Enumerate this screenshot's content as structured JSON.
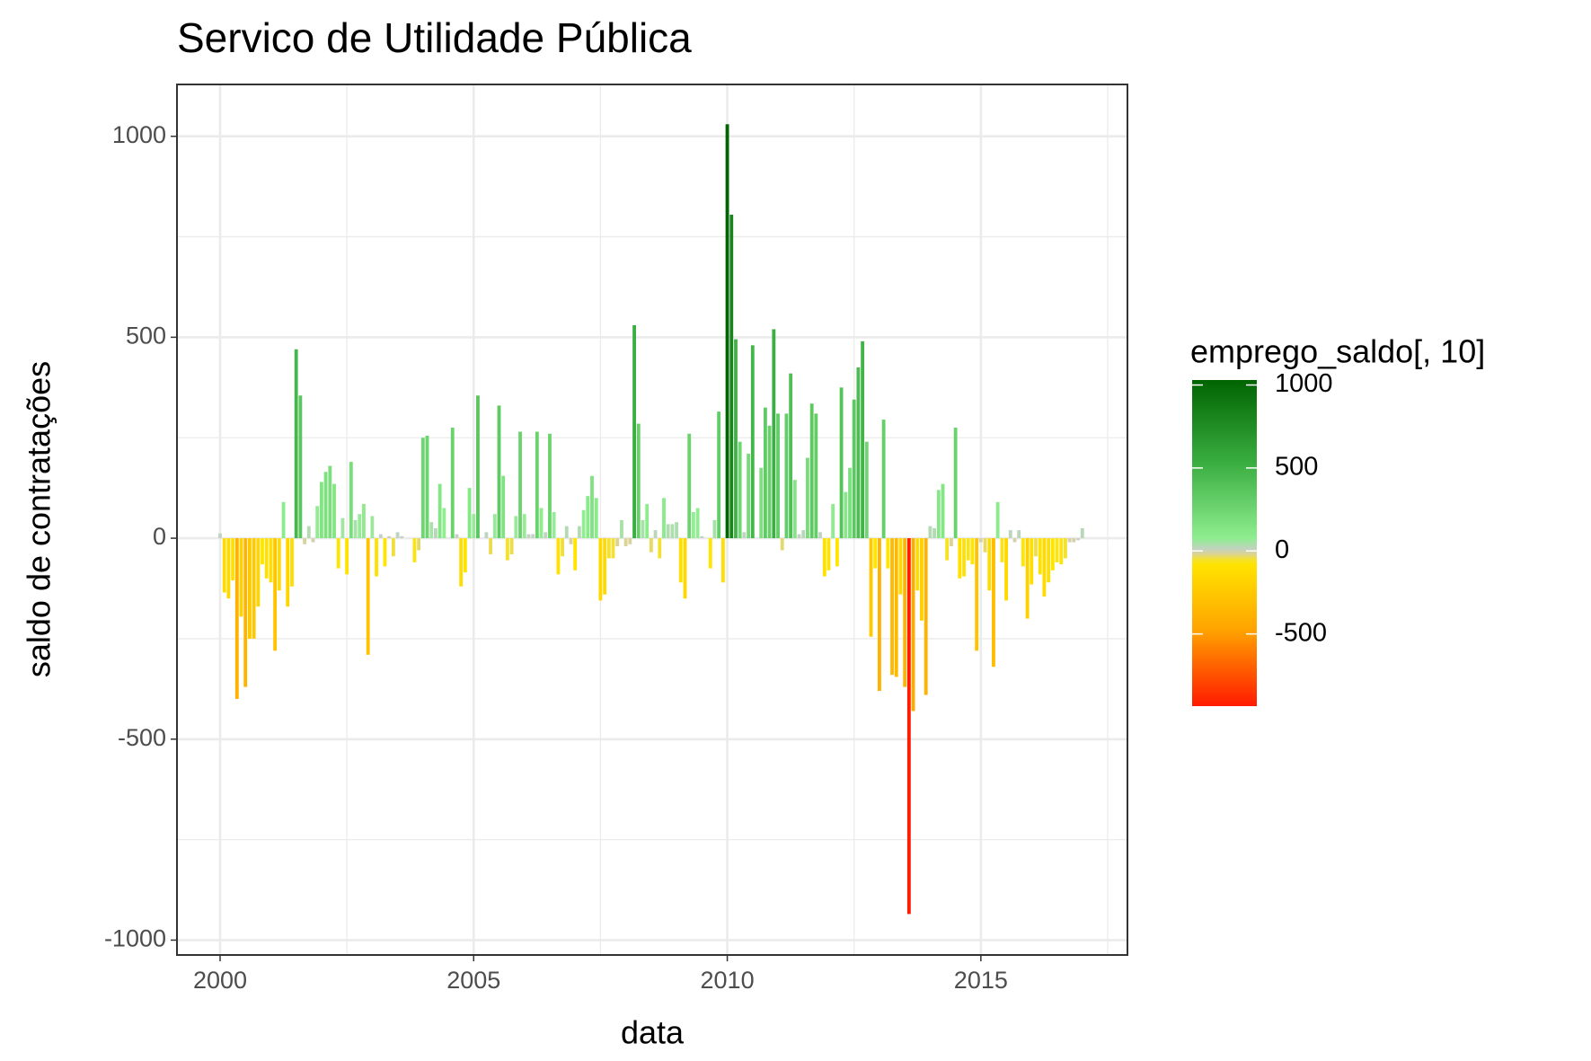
{
  "chart_data": {
    "type": "bar",
    "title": "Servico de Utilidade Pública",
    "x_label": "data",
    "y_label": "saldo de contratações",
    "x": [
      2000,
      2000.083,
      2000.167,
      2000.25,
      2000.333,
      2000.417,
      2000.5,
      2000.583,
      2000.667,
      2000.75,
      2000.833,
      2000.917,
      2001,
      2001.083,
      2001.167,
      2001.25,
      2001.333,
      2001.417,
      2001.5,
      2001.583,
      2001.667,
      2001.75,
      2001.833,
      2001.917,
      2002,
      2002.083,
      2002.167,
      2002.25,
      2002.333,
      2002.417,
      2002.5,
      2002.583,
      2002.667,
      2002.75,
      2002.833,
      2002.917,
      2003,
      2003.083,
      2003.167,
      2003.25,
      2003.333,
      2003.417,
      2003.5,
      2003.583,
      2003.667,
      2003.75,
      2003.833,
      2003.917,
      2004,
      2004.083,
      2004.167,
      2004.25,
      2004.333,
      2004.417,
      2004.5,
      2004.583,
      2004.667,
      2004.75,
      2004.833,
      2004.917,
      2005,
      2005.083,
      2005.167,
      2005.25,
      2005.333,
      2005.417,
      2005.5,
      2005.583,
      2005.667,
      2005.75,
      2005.833,
      2005.917,
      2006,
      2006.083,
      2006.167,
      2006.25,
      2006.333,
      2006.417,
      2006.5,
      2006.583,
      2006.667,
      2006.75,
      2006.833,
      2006.917,
      2007,
      2007.083,
      2007.167,
      2007.25,
      2007.333,
      2007.417,
      2007.5,
      2007.583,
      2007.667,
      2007.75,
      2007.833,
      2007.917,
      2008,
      2008.083,
      2008.167,
      2008.25,
      2008.333,
      2008.417,
      2008.5,
      2008.583,
      2008.667,
      2008.75,
      2008.833,
      2008.917,
      2009,
      2009.083,
      2009.167,
      2009.25,
      2009.333,
      2009.417,
      2009.5,
      2009.583,
      2009.667,
      2009.75,
      2009.833,
      2009.917,
      2010,
      2010.083,
      2010.167,
      2010.25,
      2010.333,
      2010.417,
      2010.5,
      2010.583,
      2010.667,
      2010.75,
      2010.833,
      2010.917,
      2011,
      2011.083,
      2011.167,
      2011.25,
      2011.333,
      2011.417,
      2011.5,
      2011.583,
      2011.667,
      2011.75,
      2011.833,
      2011.917,
      2012,
      2012.083,
      2012.167,
      2012.25,
      2012.333,
      2012.417,
      2012.5,
      2012.583,
      2012.667,
      2012.75,
      2012.833,
      2012.917,
      2013,
      2013.083,
      2013.167,
      2013.25,
      2013.333,
      2013.417,
      2013.5,
      2013.583,
      2013.667,
      2013.75,
      2013.833,
      2013.917,
      2014,
      2014.083,
      2014.167,
      2014.25,
      2014.333,
      2014.417,
      2014.5,
      2014.583,
      2014.667,
      2014.75,
      2014.833,
      2014.917,
      2015,
      2015.083,
      2015.167,
      2015.25,
      2015.333,
      2015.417,
      2015.5,
      2015.583,
      2015.667,
      2015.75,
      2015.833,
      2015.917,
      2016,
      2016.083,
      2016.167,
      2016.25,
      2016.333,
      2016.417,
      2016.5,
      2016.583,
      2016.667,
      2016.75,
      2016.833,
      2016.917,
      2017
    ],
    "values": [
      12,
      -135,
      -150,
      -105,
      -400,
      -195,
      -370,
      -250,
      -250,
      -170,
      -65,
      -100,
      -110,
      -280,
      -130,
      90,
      -170,
      -120,
      470,
      355,
      -15,
      30,
      -10,
      80,
      140,
      165,
      180,
      135,
      -75,
      50,
      -90,
      190,
      45,
      60,
      85,
      -290,
      55,
      -95,
      10,
      -70,
      5,
      -45,
      15,
      5,
      0,
      0,
      -60,
      -30,
      250,
      255,
      40,
      25,
      135,
      75,
      0,
      275,
      10,
      -120,
      -85,
      125,
      60,
      355,
      0,
      15,
      -40,
      60,
      330,
      155,
      -55,
      -40,
      55,
      265,
      60,
      10,
      10,
      265,
      75,
      15,
      260,
      65,
      -90,
      -45,
      30,
      -15,
      -80,
      30,
      70,
      105,
      155,
      100,
      -155,
      -140,
      -50,
      -50,
      -20,
      45,
      -20,
      -15,
      530,
      285,
      45,
      85,
      -35,
      20,
      -50,
      100,
      35,
      35,
      40,
      -110,
      -150,
      260,
      65,
      75,
      5,
      0,
      -75,
      45,
      315,
      -110,
      1030,
      805,
      495,
      240,
      15,
      210,
      480,
      0,
      175,
      325,
      280,
      520,
      310,
      -30,
      310,
      410,
      145,
      10,
      20,
      200,
      335,
      310,
      15,
      -95,
      -80,
      85,
      -70,
      375,
      115,
      175,
      345,
      425,
      490,
      240,
      -245,
      -75,
      -380,
      295,
      -75,
      -340,
      -345,
      -140,
      -370,
      -935,
      -430,
      -130,
      -205,
      -390,
      30,
      25,
      120,
      135,
      -55,
      -20,
      275,
      -100,
      -95,
      -55,
      -65,
      -280,
      -10,
      -35,
      -130,
      -320,
      90,
      -60,
      -155,
      20,
      -10,
      20,
      -70,
      -200,
      -115,
      -45,
      -90,
      -145,
      -110,
      -80,
      -60,
      -65,
      -50,
      -10,
      -10,
      -5,
      25
    ],
    "xlim": [
      1999.15,
      2017.89
    ],
    "xticks": [
      2000,
      2005,
      2010,
      2015
    ],
    "ylim": [
      -1037,
      1129
    ],
    "yticks": [
      -1000,
      -500,
      0,
      500,
      1000
    ],
    "grid": true,
    "legend": {
      "title": "emprego_saldo[, 10]",
      "ticks": [
        -500,
        0,
        500,
        1000
      ],
      "position": "right",
      "negative_colors": [
        "#cccccc",
        "#ffe600",
        "#ffa500",
        "#ff1a00"
      ],
      "positive_colors": [
        "#cccccc",
        "#90ee90",
        "#3cb043",
        "#006400"
      ]
    }
  }
}
